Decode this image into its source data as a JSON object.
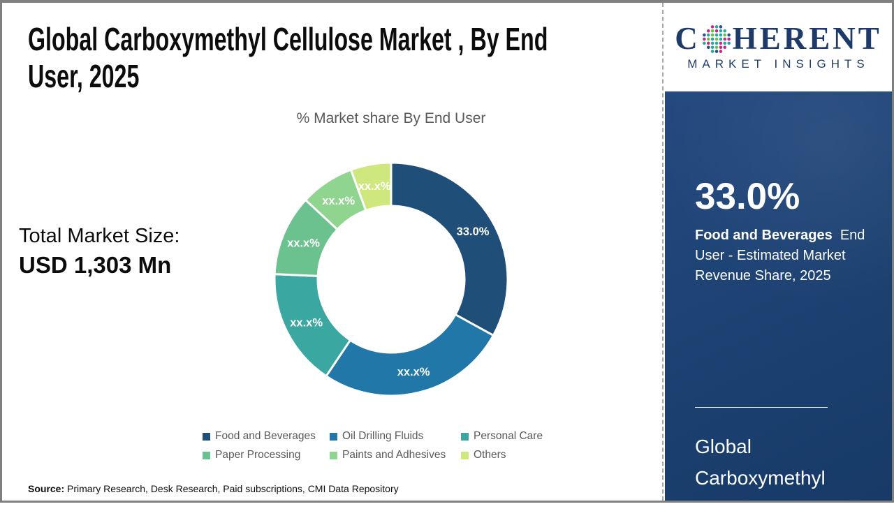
{
  "header": {
    "title_line1": "Global Carboxymethyl Cellulose Market , By End",
    "title_line2": "User, 2025"
  },
  "logo": {
    "prefix": "C",
    "suffix": "HERENT",
    "subtitle": "MARKET INSIGHTS",
    "text_color": "#1e3a69",
    "globe_colors": [
      "#2ba5a0",
      "#6cbf4b",
      "#bf2b8c",
      "#27508c"
    ]
  },
  "total_market": {
    "label": "Total Market Size:",
    "value": "USD 1,303 Mn"
  },
  "chart_data": {
    "type": "pie",
    "subtype": "donut",
    "title": "% Market share By End User",
    "categories": [
      "Food and Beverages",
      "Oil Drilling Fluids",
      "Personal Care",
      "Paper Processing",
      "Paints and Adhesives",
      "Others"
    ],
    "values": [
      33.0,
      26.4,
      16.3,
      11.2,
      7.5,
      5.6
    ],
    "slice_labels": [
      "33.0%",
      "xx.x%",
      "xx.x%",
      "xx.x%",
      "xx.x%",
      "xx.x%"
    ],
    "colors": [
      "#1F4E79",
      "#2177A8",
      "#3AA7A0",
      "#6BC28E",
      "#8FD48F",
      "#CEE87E"
    ],
    "start_angle_deg": 0,
    "inner_radius_ratio": 0.63,
    "legend_position": "bottom"
  },
  "sidebar": {
    "stat_value": "33.0%",
    "stat_desc_bold": "Food and Beverages",
    "stat_desc_rest": "  End User - Estimated Market Revenue Share, 2025",
    "market_name": "Global Carboxymethyl Cellulose Market"
  },
  "footer": {
    "source_label": "Source:",
    "source_text": " Primary Research, Desk Research, Paid subscriptions, CMI Data Repository"
  }
}
